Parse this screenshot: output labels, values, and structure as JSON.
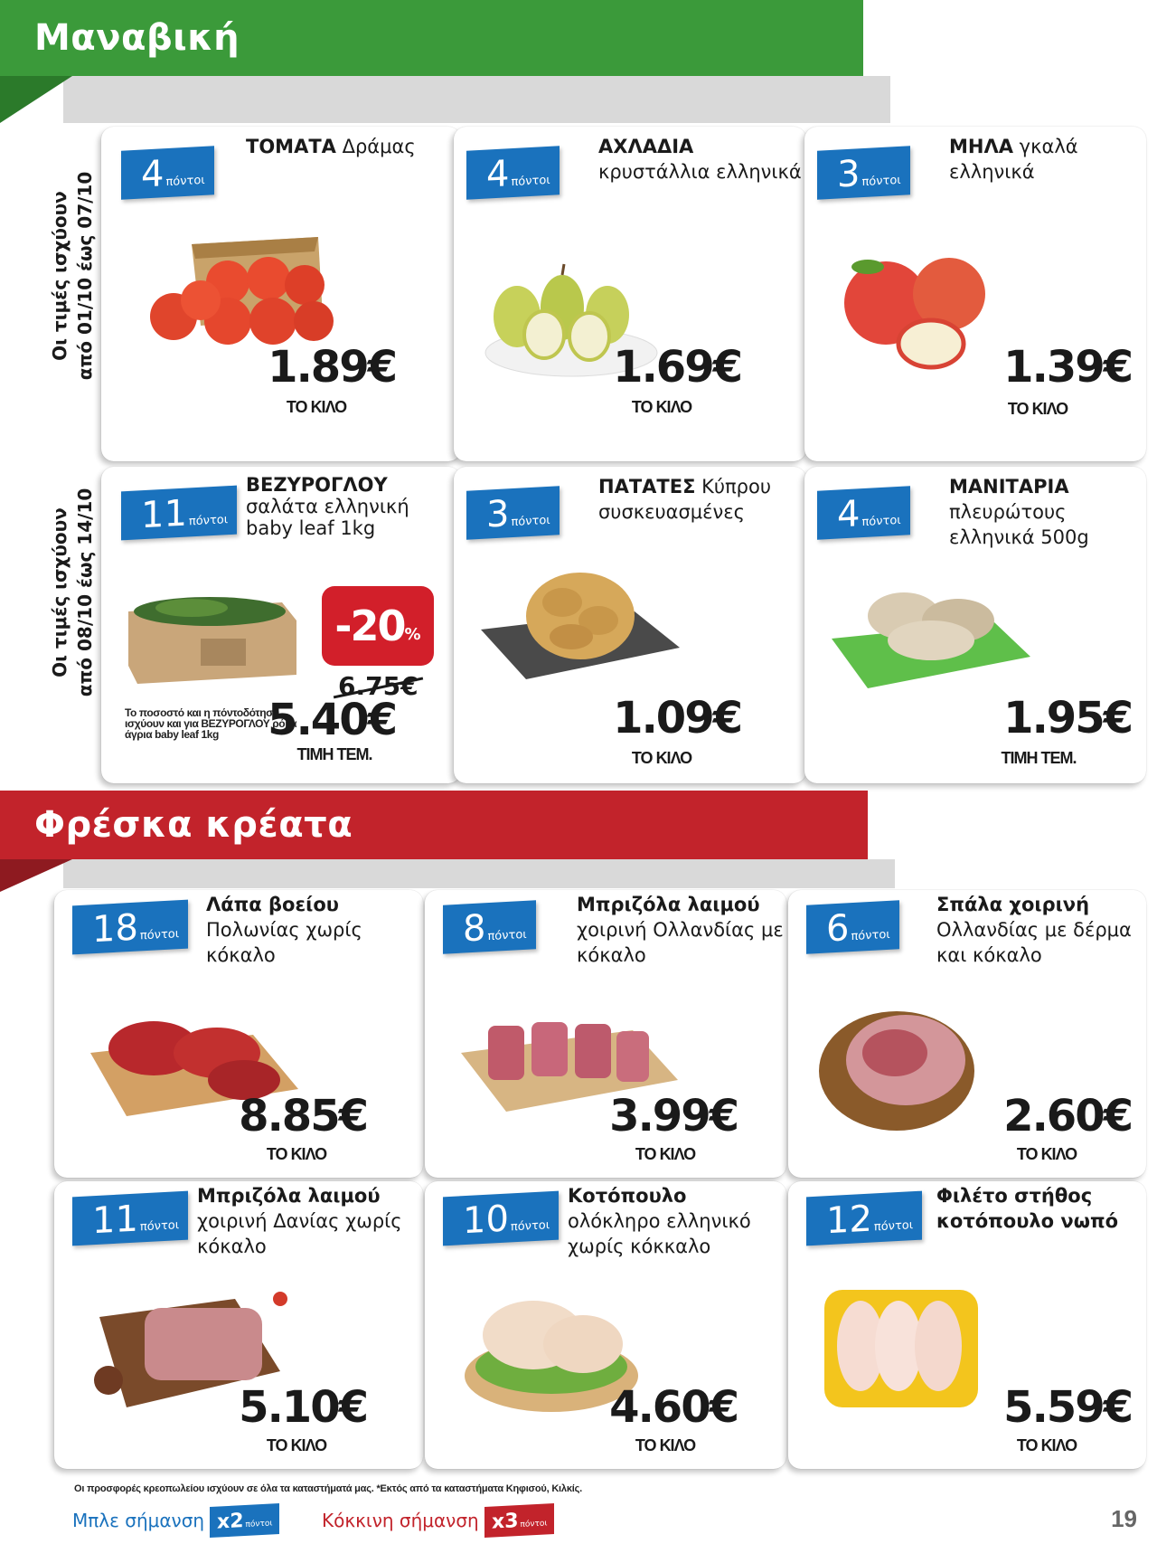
{
  "sections": {
    "vegetables": {
      "title": "Μαναβική"
    },
    "meats": {
      "title": "Φρέσκα κρέατα"
    }
  },
  "validity": {
    "first": {
      "line1": "Οι τιμές ισχύουν",
      "line2": "από 01/10 έως 07/10"
    },
    "second": {
      "line1": "Οι τιμές ισχύουν",
      "line2": "από 08/10 έως 14/10"
    }
  },
  "points_label": "πόντοι",
  "products": [
    {
      "points": "4",
      "name": "ΤΟΜΑΤΑ",
      "desc": "Δράμας",
      "price": "1.89€",
      "unit": "ΤΟ ΚΙΛΟ"
    },
    {
      "points": "4",
      "name": "ΑΧΛΑΔΙΑ",
      "desc": "κρυστάλλια ελληνικά",
      "price": "1.69€",
      "unit": "ΤΟ ΚΙΛΟ"
    },
    {
      "points": "3",
      "name": "ΜΗΛΑ",
      "desc": "γκαλά ελληνικά",
      "price": "1.39€",
      "unit": "ΤΟ ΚΙΛΟ"
    },
    {
      "points": "11",
      "name": "ΒΕΖΥΡΟΓΛΟΥ",
      "desc": "σαλάτα ελληνική baby leaf 1kg",
      "price": "5.40€",
      "unit": "ΤΙΜΗ ΤΕΜ.",
      "discount": "-20",
      "discount_pct": "%",
      "old_price": "6.75€",
      "note": "Το ποσοστό και η πόντοδότηση ισχύουν και για ΒΕΖΥΡΟΓΛΟΥ ρόκα άγρια baby leaf 1kg"
    },
    {
      "points": "3",
      "name": "ΠΑΤΑΤΕΣ",
      "desc": "Κύπρου συσκευασμένες",
      "price": "1.09€",
      "unit": "ΤΟ ΚΙΛΟ"
    },
    {
      "points": "4",
      "name": "ΜΑΝΙΤΑΡΙΑ",
      "desc": "πλευρώτους ελληνικά 500g",
      "price": "1.95€",
      "unit": "ΤΙΜΗ ΤΕΜ."
    },
    {
      "points": "18",
      "name": "Λάπα βοείου",
      "desc": "Πολωνίας χωρίς κόκαλο",
      "price": "8.85€",
      "unit": "ΤΟ ΚΙΛΟ"
    },
    {
      "points": "8",
      "name": "Μπριζόλα λαιμού",
      "desc": "χοιρινή Ολλανδίας με κόκαλο",
      "price": "3.99€",
      "unit": "ΤΟ ΚΙΛΟ"
    },
    {
      "points": "6",
      "name": "Σπάλα χοιρινή",
      "desc": "Ολλανδίας με δέρμα και κόκαλο",
      "price": "2.60€",
      "unit": "ΤΟ ΚΙΛΟ"
    },
    {
      "points": "11",
      "name": "Μπριζόλα λαιμού",
      "desc": "χοιρινή Δανίας χωρίς κόκαλο",
      "price": "5.10€",
      "unit": "ΤΟ ΚΙΛΟ"
    },
    {
      "points": "10",
      "name": "Κοτόπουλο",
      "desc": "ολόκληρο ελληνικό χωρίς κόκκαλο",
      "price": "4.60€",
      "unit": "ΤΟ ΚΙΛΟ"
    },
    {
      "points": "12",
      "name": "Φιλέτο στήθος",
      "desc": "κοτόπουλο νωπό",
      "price": "5.59€",
      "unit": "ΤΟ ΚΙΛΟ"
    }
  ],
  "footer": {
    "note": "Οι προσφορές κρεοπωλείου ισχύουν σε όλα τα καταστήματά μας. *Εκτός από τα καταστήματα Κηφισού, Κιλκίς.",
    "blue_label": "Μπλε σήμανση",
    "blue_mult": "x2",
    "red_label": "Κόκκινη σήμανση",
    "red_mult": "x3",
    "page": "19"
  },
  "colors": {
    "green": "#3b9a3a",
    "red": "#c2232b",
    "blue": "#1a72bd"
  }
}
